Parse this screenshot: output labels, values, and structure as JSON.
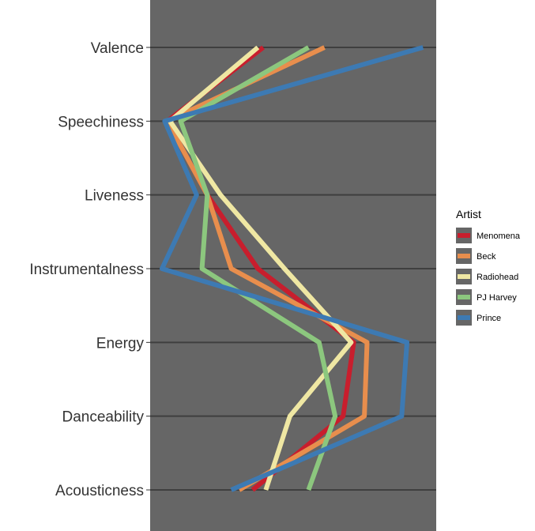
{
  "chart_data": {
    "type": "line",
    "orientation": "vertical-profile",
    "categories": [
      "Valence",
      "Speechiness",
      "Liveness",
      "Instrumentalness",
      "Energy",
      "Danceability",
      "Acousticness"
    ],
    "xlim": [
      0,
      1
    ],
    "grid": true,
    "panel_background": "#666666",
    "gridline_color": "#3f3f3f",
    "legend": {
      "title": "Artist",
      "placement": "right"
    },
    "series": [
      {
        "name": "Menomena",
        "color": "#c81e2d",
        "values": [
          0.38,
          0.02,
          0.17,
          0.36,
          0.72,
          0.68,
          0.34
        ]
      },
      {
        "name": "Beck",
        "color": "#e88e4d",
        "values": [
          0.61,
          0.02,
          0.17,
          0.26,
          0.77,
          0.76,
          0.29
        ]
      },
      {
        "name": "Radiohead",
        "color": "#efe7a3",
        "values": [
          0.36,
          0.03,
          0.22,
          0.46,
          0.71,
          0.48,
          0.39
        ]
      },
      {
        "name": "PJ Harvey",
        "color": "#8cc77e",
        "values": [
          0.55,
          0.07,
          0.17,
          0.15,
          0.59,
          0.65,
          0.55
        ]
      },
      {
        "name": "Prince",
        "color": "#3d7ab3",
        "values": [
          0.98,
          0.01,
          0.13,
          0.0,
          0.92,
          0.9,
          0.26
        ]
      }
    ]
  }
}
